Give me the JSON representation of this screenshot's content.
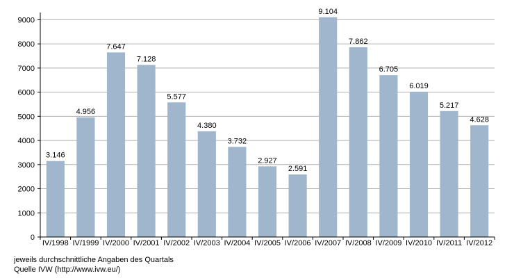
{
  "chart_data": {
    "type": "bar",
    "categories": [
      "IV/1998",
      "IV/1999",
      "IV/2000",
      "IV/2001",
      "IV/2002",
      "IV/2003",
      "IV/2004",
      "IV/2005",
      "IV/2006",
      "IV/2007",
      "IV/2008",
      "IV/2009",
      "IV/2010",
      "IV/2011",
      "IV/2012"
    ],
    "values": [
      3146,
      4956,
      7647,
      7128,
      5577,
      4380,
      3732,
      2927,
      2591,
      9104,
      7862,
      6705,
      6019,
      5217,
      4628
    ],
    "data_labels": [
      "3.146",
      "4.956",
      "7.647",
      "7.128",
      "5.577",
      "4.380",
      "3.732",
      "2.927",
      "2.591",
      "9.104",
      "7.862",
      "6.705",
      "6.019",
      "5.217",
      "4.628"
    ],
    "y_ticks": [
      0,
      1000,
      2000,
      3000,
      4000,
      5000,
      6000,
      7000,
      8000,
      9000
    ],
    "ylim": [
      0,
      9300
    ],
    "grid": true,
    "bar_color": "#9fb6cd",
    "grid_color": "#b0b0b0",
    "title": "",
    "xlabel": "",
    "ylabel": ""
  },
  "notes": {
    "line1": "jeweils durchschnittliche Angaben des Quartals",
    "line2": "Quelle IVW (http://www.ivw.eu/)"
  }
}
